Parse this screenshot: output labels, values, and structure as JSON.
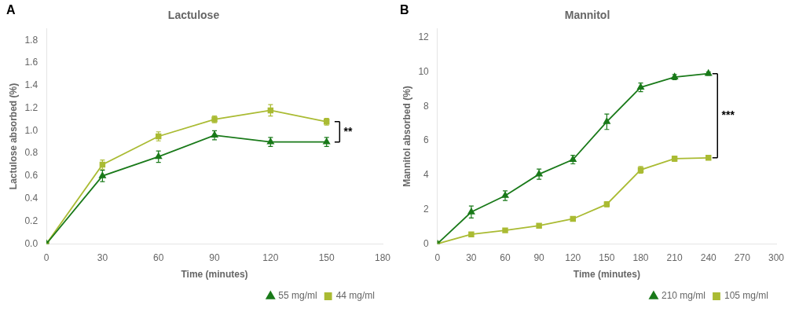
{
  "chart_data": [
    {
      "type": "line",
      "title": "Lactulose",
      "x_label": "Time (minutes)",
      "y_label": "Lactulose absorbed (%)",
      "xlim": [
        0,
        180
      ],
      "ylim": [
        0,
        1.9
      ],
      "xticks": [
        0,
        30,
        60,
        90,
        120,
        150,
        180
      ],
      "yticks": [
        {
          "value": 0,
          "label": "0.0"
        },
        0.2,
        0.4,
        0.6,
        0.8,
        {
          "value": 1.0,
          "label": "1.0"
        },
        1.2,
        1.4,
        1.6,
        1.8
      ],
      "x": [
        0,
        30,
        60,
        90,
        120,
        150
      ],
      "series": [
        {
          "name": "55 mg/ml",
          "color": "#1a7a1a",
          "marker": "triangle",
          "line_style": "solid",
          "values": [
            0,
            0.6,
            0.77,
            0.96,
            0.9,
            0.9
          ],
          "errors": [
            0,
            0.05,
            0.05,
            0.04,
            0.04,
            0.04
          ]
        },
        {
          "name": "44 mg/ml",
          "color": "#aabb33",
          "marker": "square",
          "line_style": "solid",
          "values": [
            0,
            0.7,
            0.95,
            1.1,
            1.18,
            1.08
          ],
          "errors": [
            0,
            0.04,
            0.04,
            0.03,
            0.05,
            0.03
          ]
        }
      ],
      "annotations": [
        {
          "text": "A"
        },
        {
          "text": "**",
          "x": 157,
          "y1": 0.9,
          "y2": 1.08
        }
      ],
      "legend": "lower right",
      "grid": false
    },
    {
      "type": "line",
      "title": "Mannitol",
      "x_label": "Time (minutes)",
      "y_label": "Mannitol absorbed (%)",
      "xlim": [
        0,
        300
      ],
      "ylim": [
        0,
        12.5
      ],
      "xticks": [
        0,
        30,
        60,
        90,
        120,
        150,
        180,
        210,
        240,
        270,
        300
      ],
      "yticks": [
        0,
        2,
        4,
        6,
        8,
        10,
        12
      ],
      "x": [
        0,
        30,
        60,
        90,
        120,
        150,
        180,
        210,
        240
      ],
      "series": [
        {
          "name": "210 mg/ml",
          "color": "#1a7a1a",
          "marker": "triangle",
          "line_style": "solid",
          "values": [
            0,
            1.85,
            2.8,
            4.05,
            4.9,
            7.1,
            9.1,
            9.7,
            9.9
          ],
          "errors": [
            0,
            0.35,
            0.28,
            0.3,
            0.25,
            0.45,
            0.25,
            0.15,
            0.1
          ]
        },
        {
          "name": "105 mg/ml",
          "color": "#aabb33",
          "marker": "square",
          "line_style": "solid",
          "values": [
            0,
            0.55,
            0.78,
            1.05,
            1.45,
            2.3,
            4.3,
            4.95,
            5.0
          ],
          "errors": [
            0,
            0.1,
            0.1,
            0.1,
            0.1,
            0.15,
            0.2,
            0.15,
            0.1
          ]
        }
      ],
      "annotations": [
        {
          "text": "B"
        },
        {
          "text": "***",
          "x": 248,
          "y1": 5.0,
          "y2": 9.9
        }
      ],
      "legend": "lower right",
      "grid": false
    }
  ]
}
